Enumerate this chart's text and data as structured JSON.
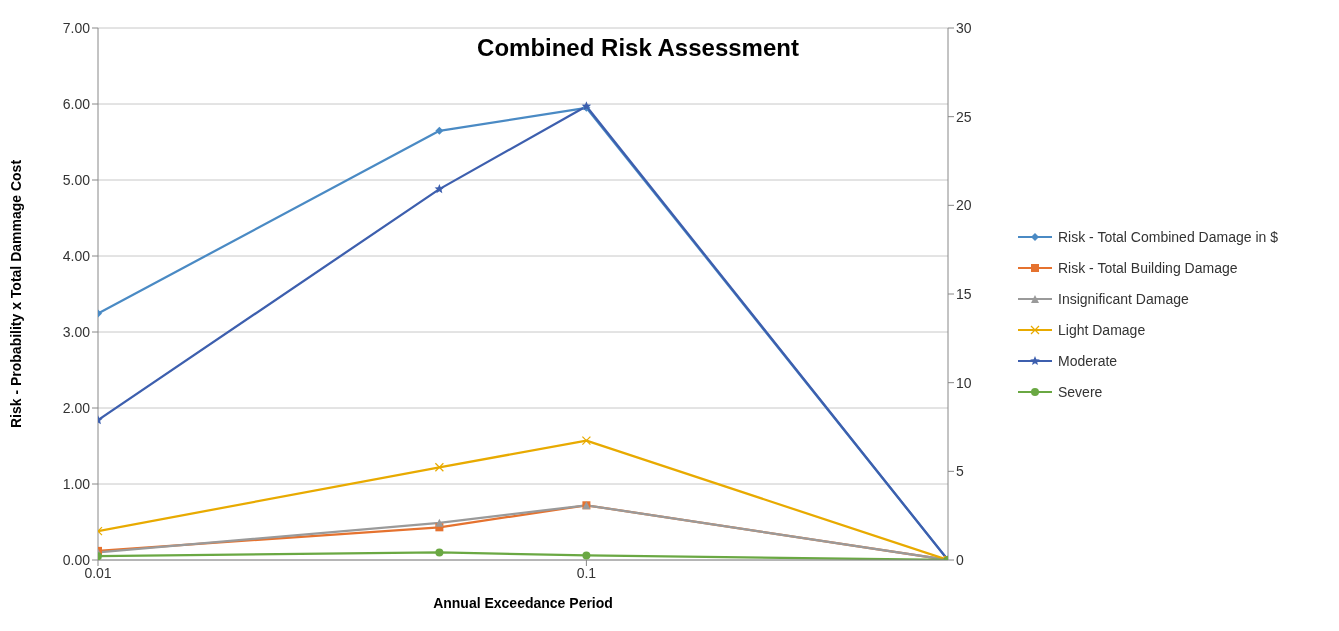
{
  "chart_data": {
    "type": "line",
    "title": "Combined Risk Assessment",
    "xlabel": "Annual Exceedance Period",
    "ylabel": "Risk - Probability x Total Dammage Cost",
    "x": [
      0.01,
      0.05,
      0.1,
      0.55
    ],
    "log": "x",
    "xlim": [
      0.01,
      0.55
    ],
    "xticks": [
      0.01,
      0.1
    ],
    "ylim": [
      0,
      7
    ],
    "yticks": [
      {
        "value": 0,
        "label": "0.00"
      },
      {
        "value": 1,
        "label": "1.00"
      },
      {
        "value": 2,
        "label": "2.00"
      },
      {
        "value": 3,
        "label": "3.00"
      },
      {
        "value": 4,
        "label": "4.00"
      },
      {
        "value": 5,
        "label": "5.00"
      },
      {
        "value": 6,
        "label": "6.00"
      },
      {
        "value": 7,
        "label": "7.00"
      }
    ],
    "y2lim": [
      0,
      30
    ],
    "y2ticks": [
      0,
      5,
      10,
      15,
      20,
      25,
      30
    ],
    "grid": "y",
    "legend": "right",
    "line_style": "solid",
    "series": [
      {
        "name": "Risk - Total Combined Damage in $",
        "color": "#4a8ac4",
        "marker": "diamond",
        "axis": "y2",
        "values": [
          13.9,
          24.2,
          25.5,
          0
        ]
      },
      {
        "name": "Risk - Total Building Damage",
        "color": "#e5722f",
        "marker": "square",
        "values": [
          0.12,
          0.43,
          0.72,
          0
        ]
      },
      {
        "name": "Insignificant Damage",
        "color": "#9a9a9a",
        "marker": "triangle",
        "values": [
          0.1,
          0.49,
          0.72,
          0
        ]
      },
      {
        "name": "Light Damage",
        "color": "#e8aa00",
        "marker": "cross",
        "values": [
          0.38,
          1.22,
          1.57,
          0
        ]
      },
      {
        "name": "Moderate",
        "color": "#3d5fae",
        "marker": "star",
        "values": [
          1.84,
          4.88,
          5.97,
          0
        ]
      },
      {
        "name": "Severe",
        "color": "#6aa843",
        "marker": "circle",
        "values": [
          0.05,
          0.1,
          0.06,
          0
        ]
      }
    ]
  }
}
